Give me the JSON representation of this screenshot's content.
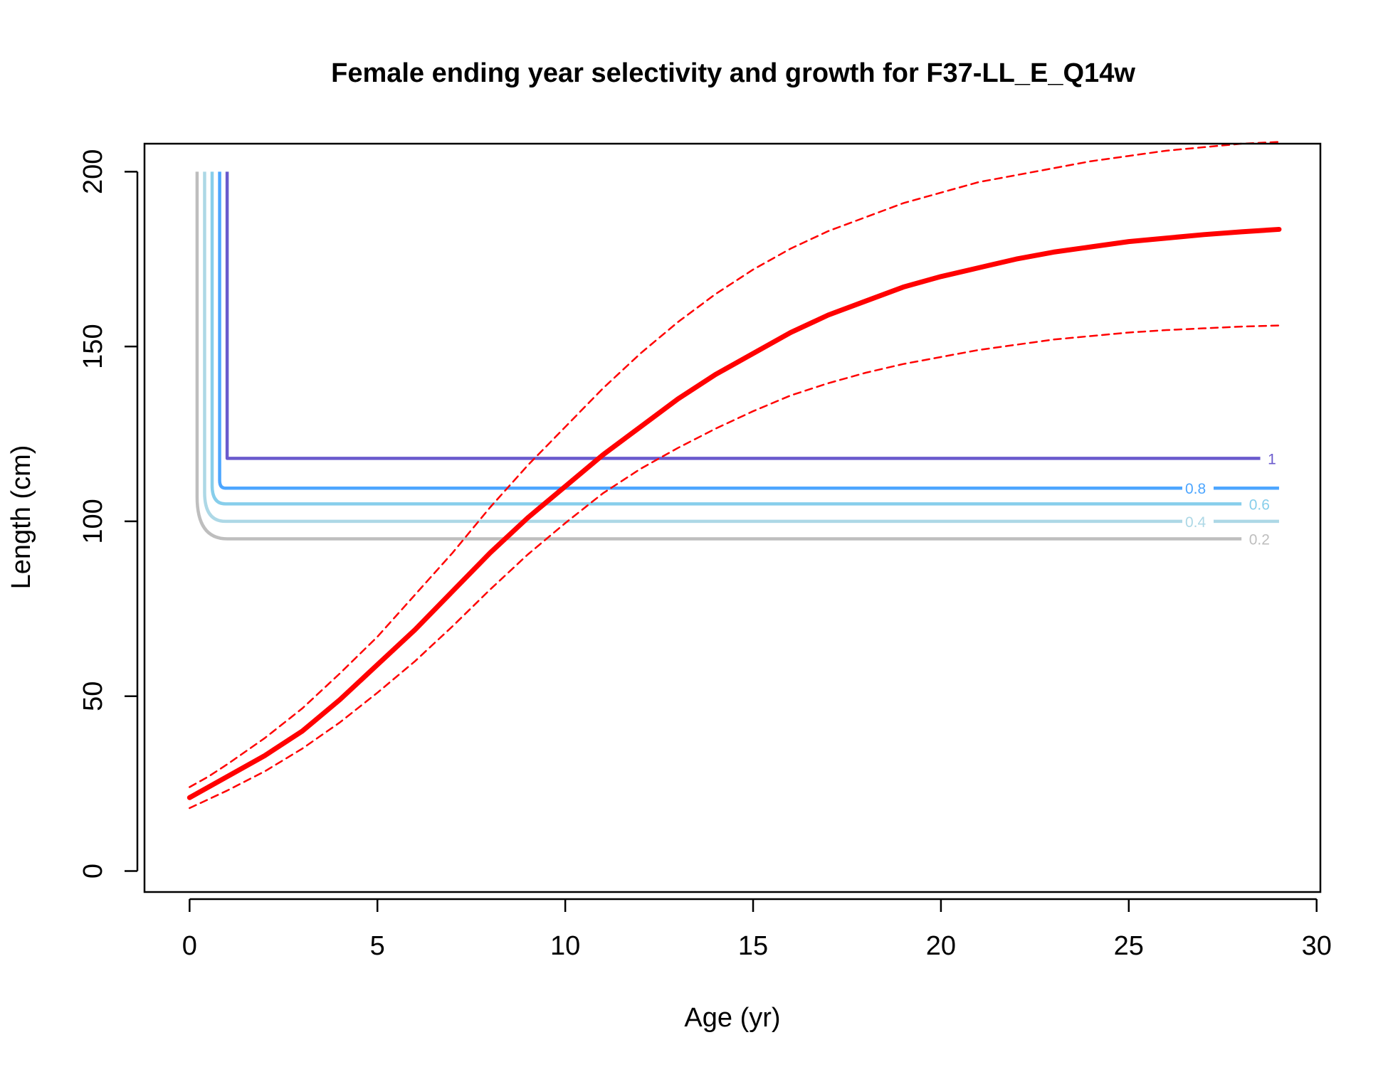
{
  "chart_data": {
    "type": "line",
    "title": "Female ending year selectivity and growth for F37-LL_E_Q14w",
    "xlabel": "Age (yr)",
    "ylabel": "Length (cm)",
    "xlim": [
      -1.2,
      30.1
    ],
    "ylim": [
      -6,
      208
    ],
    "x_ticks": [
      0,
      5,
      10,
      15,
      20,
      25,
      30
    ],
    "y_ticks": [
      0,
      50,
      100,
      150,
      200
    ],
    "grid": false,
    "growth": {
      "color": "#ff0000",
      "mean": {
        "x": [
          0,
          0.5,
          1,
          2,
          3,
          4,
          5,
          6,
          7,
          8,
          9,
          10,
          11,
          12,
          13,
          14,
          15,
          16,
          17,
          18,
          19,
          20,
          21,
          22,
          23,
          24,
          25,
          26,
          27,
          28,
          29
        ],
        "y": [
          21,
          24,
          27,
          33,
          40,
          49,
          59,
          69,
          80,
          91,
          101,
          110,
          119,
          127,
          135,
          142,
          148,
          154,
          159,
          163,
          167,
          170,
          172.5,
          175,
          177,
          178.5,
          180,
          181,
          182,
          182.8,
          183.5
        ]
      },
      "upper": {
        "x": [
          0,
          0.5,
          1,
          2,
          3,
          4,
          5,
          6,
          7,
          8,
          9,
          10,
          11,
          12,
          13,
          14,
          15,
          16,
          17,
          18,
          19,
          20,
          21,
          22,
          23,
          24,
          25,
          26,
          27,
          28,
          29
        ],
        "y": [
          24,
          27,
          30.5,
          38,
          46.5,
          56.5,
          67,
          79,
          91,
          104,
          116,
          127,
          138,
          148,
          157,
          165,
          172,
          178,
          183,
          187,
          191,
          194,
          197,
          199,
          201,
          203,
          204.5,
          206,
          207,
          208,
          208.5
        ]
      },
      "lower": {
        "x": [
          0,
          0.5,
          1,
          2,
          3,
          4,
          5,
          6,
          7,
          8,
          9,
          10,
          11,
          12,
          13,
          14,
          15,
          16,
          17,
          18,
          19,
          20,
          21,
          22,
          23,
          24,
          25,
          26,
          27,
          28,
          29
        ],
        "y": [
          18,
          20.5,
          23,
          28.5,
          35,
          42.5,
          51,
          60,
          70,
          80.5,
          90.5,
          99.5,
          108,
          115,
          121,
          126.5,
          131.5,
          136,
          139.5,
          142.5,
          145,
          147,
          149,
          150.5,
          152,
          153,
          154,
          154.7,
          155.2,
          155.7,
          156
        ]
      }
    },
    "selectivity_contours": [
      {
        "level": "0.2",
        "color": "#bebebe",
        "corner_age": 1.0,
        "length": 95,
        "end_age": 28,
        "label_age": 28.2
      },
      {
        "level": "0.4",
        "color": "#add8e6",
        "corner_age": 0.95,
        "length": 100,
        "end_age": 29,
        "label_age": 26.5
      },
      {
        "level": "0.6",
        "color": "#87ceeb",
        "corner_age": 0.95,
        "length": 105,
        "end_age": 28,
        "label_age": 28.2
      },
      {
        "level": "0.8",
        "color": "#4da6ff",
        "corner_age": 0.95,
        "length": 109.5,
        "end_age": 29,
        "label_age": 26.5
      },
      {
        "level": "1",
        "color": "#6a5acd",
        "corner_age": 1.0,
        "length": 118,
        "end_age": 28.5,
        "label_age": 28.7
      }
    ],
    "contour_vertical_ages": [
      0.2,
      0.4,
      0.6,
      0.8,
      1.0
    ],
    "contour_top_length": 200
  }
}
